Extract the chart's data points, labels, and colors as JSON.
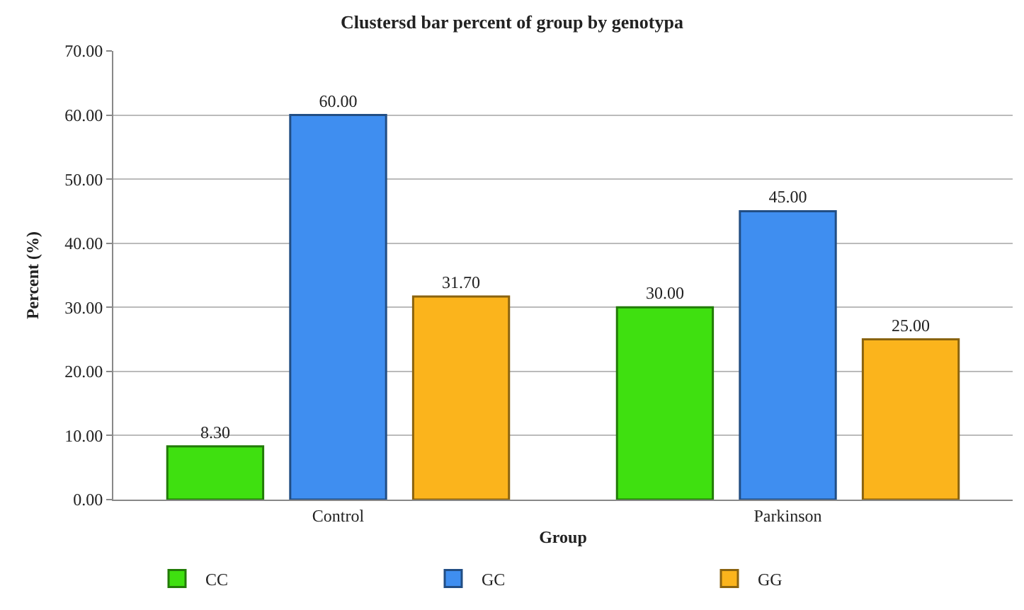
{
  "chart_data": {
    "type": "bar",
    "title": "Clustersd bar percent of group by genotypa",
    "xlabel": "Group",
    "ylabel": "Percent (%)",
    "categories": [
      "Control",
      "Parkinson"
    ],
    "series": [
      {
        "name": "CC",
        "color": "#3fe010",
        "values": [
          8.3,
          30
        ],
        "value_labels": [
          "8.30",
          "30.00"
        ]
      },
      {
        "name": "GC",
        "color": "#3f8ef0",
        "values": [
          60,
          45
        ],
        "value_labels": [
          "60.00",
          "45.00"
        ]
      },
      {
        "name": "GG",
        "color": "#fbb41c",
        "values": [
          31.7,
          25
        ],
        "value_labels": [
          "31.70",
          "25.00"
        ]
      }
    ],
    "ylim": [
      0,
      70
    ],
    "yticks": [
      {
        "value": 0,
        "label": "0.00"
      },
      {
        "value": 10,
        "label": "10.00"
      },
      {
        "value": 20,
        "label": "20.00"
      },
      {
        "value": 30,
        "label": "30.00"
      },
      {
        "value": 40,
        "label": "40.00"
      },
      {
        "value": 50,
        "label": "50.00"
      },
      {
        "value": 60,
        "label": "60.00"
      },
      {
        "value": 70,
        "label": "70.00"
      }
    ],
    "grid": "y",
    "legend": "bottom"
  }
}
